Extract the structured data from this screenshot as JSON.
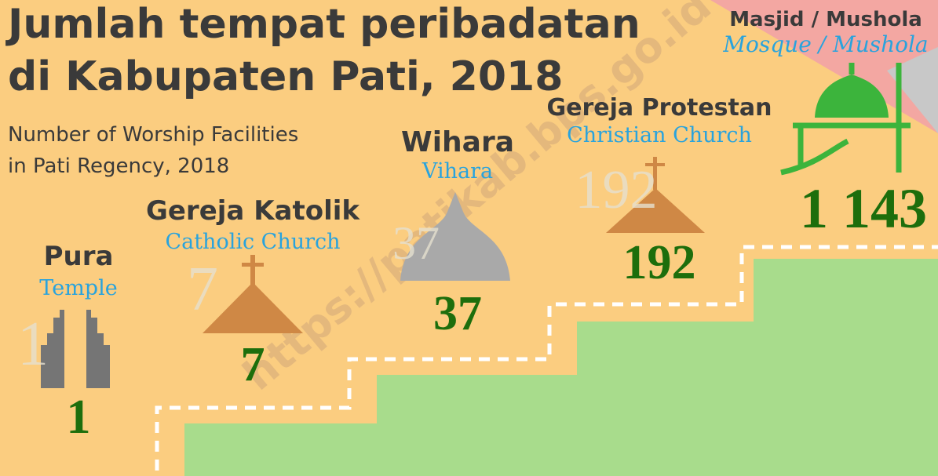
{
  "header": {
    "title_line1": "Jumlah tempat peribadatan",
    "title_line2": "di Kabupaten Pati, 2018",
    "subtitle_line1": "Number of Worship Facilities",
    "subtitle_line2": "in Pati Regency, 2018"
  },
  "watermark": "https://patikab.bps.go.id",
  "items": [
    {
      "label": "Pura",
      "translation": "Temple",
      "value": "1"
    },
    {
      "label": "Gereja Katolik",
      "translation": "Catholic Church",
      "value": "7"
    },
    {
      "label": "Wihara",
      "translation": "Vihara",
      "value": "37"
    },
    {
      "label": "Gereja Protestan",
      "translation": "Christian Church",
      "value": "192"
    },
    {
      "label": "Masjid / Mushola",
      "translation": "Mosque / Mushola",
      "value": "1 143"
    }
  ]
}
